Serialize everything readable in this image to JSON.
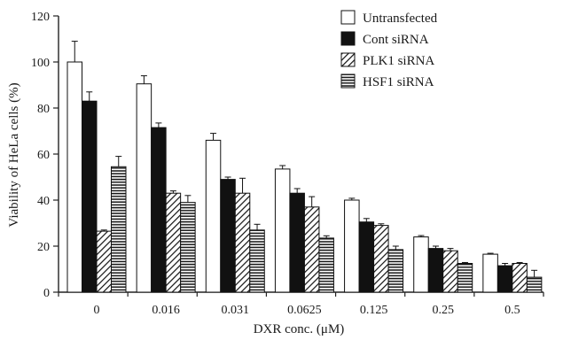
{
  "chart_data": {
    "type": "bar",
    "xlabel": "DXR conc. (μM)",
    "ylabel": "Viability of HeLa cells  (%)",
    "ylim": [
      0,
      120
    ],
    "yticks": [
      0,
      20,
      40,
      60,
      80,
      100,
      120
    ],
    "categories": [
      "0",
      "0.016",
      "0.031",
      "0.0625",
      "0.125",
      "0.25",
      "0.5"
    ],
    "legend_position": "top-right",
    "grid": false,
    "series": [
      {
        "name": "Untransfected",
        "pattern": "white",
        "values": [
          100,
          90.5,
          66,
          53.5,
          40,
          24,
          16.5
        ],
        "errors": [
          9,
          3.5,
          3,
          1.5,
          0.8,
          0.6,
          0.4
        ]
      },
      {
        "name": "Cont siRNA",
        "pattern": "black",
        "values": [
          83,
          71.5,
          49,
          43,
          30.5,
          19,
          11.5
        ],
        "errors": [
          4,
          2,
          1,
          2,
          1.5,
          1,
          1
        ]
      },
      {
        "name": "PLK1 siRNA",
        "pattern": "diagonal",
        "values": [
          26.5,
          43,
          43,
          37,
          29,
          18,
          12.5
        ],
        "errors": [
          0.5,
          1,
          6.5,
          4.5,
          0.7,
          1,
          0.4
        ]
      },
      {
        "name": "HSF1 siRNA",
        "pattern": "horizontal",
        "values": [
          54.5,
          39,
          27,
          23.5,
          18.5,
          12.5,
          6.5
        ],
        "errors": [
          4.5,
          3,
          2.5,
          1,
          1.5,
          0.4,
          3
        ]
      }
    ]
  }
}
